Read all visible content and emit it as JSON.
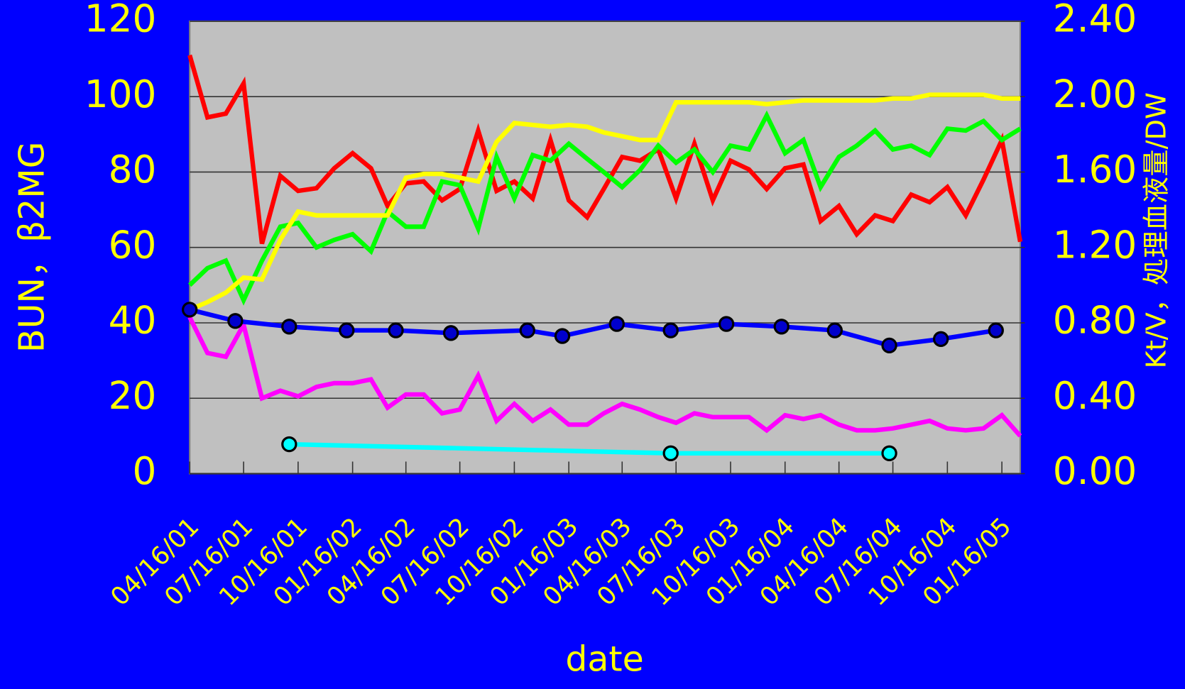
{
  "chart_data": {
    "type": "line",
    "xlabel": "date",
    "ylabel": "BUN，β2MG",
    "y2label": "Kt/V，処理血液量/DW",
    "xlim": [
      "2001-04-16",
      "2005-02-16"
    ],
    "xticks": [
      {
        "value": "2001-04-16",
        "label": "04/16/01"
      },
      {
        "value": "2001-07-16",
        "label": "07/16/01"
      },
      {
        "value": "2001-10-16",
        "label": "10/16/01"
      },
      {
        "value": "2002-01-16",
        "label": "01/16/02"
      },
      {
        "value": "2002-04-16",
        "label": "04/16/02"
      },
      {
        "value": "2002-07-16",
        "label": "07/16/02"
      },
      {
        "value": "2002-10-16",
        "label": "10/16/02"
      },
      {
        "value": "2003-01-16",
        "label": "01/16/03"
      },
      {
        "value": "2003-04-16",
        "label": "04/16/03"
      },
      {
        "value": "2003-07-16",
        "label": "07/16/03"
      },
      {
        "value": "2003-10-16",
        "label": "10/16/03"
      },
      {
        "value": "2004-01-16",
        "label": "01/16/04"
      },
      {
        "value": "2004-04-16",
        "label": "04/16/04"
      },
      {
        "value": "2004-07-16",
        "label": "07/16/04"
      },
      {
        "value": "2004-10-16",
        "label": "10/16/04"
      },
      {
        "value": "2005-01-16",
        "label": "01/16/05"
      }
    ],
    "ylim": [
      0,
      120
    ],
    "yticks": [
      0,
      20,
      40,
      60,
      80,
      100,
      120
    ],
    "y2lim": [
      0,
      2.4
    ],
    "y2ticks": [
      {
        "value": 0,
        "label": "0.00"
      },
      {
        "value": 0.4,
        "label": "0.40"
      },
      {
        "value": 0.8,
        "label": "0.80"
      },
      {
        "value": 1.2,
        "label": "1.20"
      },
      {
        "value": 1.6,
        "label": "1.60"
      },
      {
        "value": 2.0,
        "label": "2.00"
      },
      {
        "value": 2.4,
        "label": "2.40"
      }
    ],
    "grid": true,
    "background": "#c0c0c0",
    "x": [
      "2001-04-16",
      "2001-05-16",
      "2001-06-16",
      "2001-07-16",
      "2001-08-16",
      "2001-09-16",
      "2001-10-16",
      "2001-11-16",
      "2001-12-16",
      "2002-01-16",
      "2002-02-16",
      "2002-03-16",
      "2002-04-16",
      "2002-05-16",
      "2002-06-16",
      "2002-07-16",
      "2002-08-16",
      "2002-09-16",
      "2002-10-16",
      "2002-11-16",
      "2002-12-16",
      "2003-01-16",
      "2003-02-16",
      "2003-03-16",
      "2003-04-16",
      "2003-05-16",
      "2003-06-16",
      "2003-07-16",
      "2003-08-16",
      "2003-09-16",
      "2003-10-16",
      "2003-11-16",
      "2003-12-16",
      "2004-01-16",
      "2004-02-16",
      "2004-03-16",
      "2004-04-16",
      "2004-05-16",
      "2004-06-16",
      "2004-07-16",
      "2004-08-16",
      "2004-09-16",
      "2004-10-16",
      "2004-11-16",
      "2004-12-16",
      "2005-01-16",
      "2005-02-16"
    ],
    "series": [
      {
        "color": "#ff0000",
        "values": [
          111,
          94.5,
          95.5,
          103.5,
          61,
          79,
          75,
          75.7,
          81,
          85,
          81,
          71,
          77,
          77.5,
          72.5,
          75.5,
          91,
          75,
          77.5,
          73,
          88.5,
          72.5,
          68,
          75.5,
          84,
          83,
          86,
          73,
          87.5,
          72.5,
          83,
          80.7,
          75.5,
          81,
          82,
          67,
          71,
          63.5,
          68.5,
          67,
          74,
          72,
          76,
          68.5,
          78,
          88.5,
          61.5
        ]
      },
      {
        "color": "#ff00ff",
        "values": [
          41.5,
          32,
          31,
          39.5,
          20,
          22,
          20.5,
          23,
          24,
          24,
          25,
          17.5,
          21,
          21,
          16,
          17,
          26,
          14,
          18.5,
          14,
          17,
          13,
          13,
          16,
          18.5,
          17,
          15,
          13.5,
          16,
          15,
          15,
          15,
          11.5,
          15.5,
          14.5,
          15.5,
          13,
          11.5,
          11.5,
          12,
          13,
          14,
          12,
          11.5,
          12,
          15.5,
          10
        ]
      },
      {
        "color": "#00ff00",
        "axis": "y2",
        "values": [
          1.0,
          1.09,
          1.13,
          0.92,
          1.13,
          1.31,
          1.33,
          1.2,
          1.24,
          1.27,
          1.18,
          1.39,
          1.31,
          1.31,
          1.55,
          1.53,
          1.3,
          1.68,
          1.46,
          1.69,
          1.66,
          1.75,
          1.67,
          1.6,
          1.52,
          1.61,
          1.74,
          1.65,
          1.72,
          1.6,
          1.74,
          1.72,
          1.9,
          1.7,
          1.77,
          1.52,
          1.68,
          1.74,
          1.82,
          1.72,
          1.74,
          1.69,
          1.83,
          1.82,
          1.87,
          1.77,
          1.83
        ]
      },
      {
        "color": "#ffff00",
        "axis": "y2",
        "values": [
          0.87,
          0.91,
          0.96,
          1.04,
          1.03,
          1.24,
          1.39,
          1.37,
          1.37,
          1.37,
          1.37,
          1.37,
          1.57,
          1.59,
          1.59,
          1.57,
          1.55,
          1.76,
          1.86,
          1.85,
          1.84,
          1.85,
          1.84,
          1.81,
          1.79,
          1.77,
          1.77,
          1.97,
          1.97,
          1.97,
          1.97,
          1.97,
          1.96,
          1.97,
          1.98,
          1.98,
          1.98,
          1.98,
          1.98,
          1.99,
          1.99,
          2.01,
          2.01,
          2.01,
          2.01,
          1.99,
          1.99
        ]
      },
      {
        "color": "#0000ff",
        "marker_color": "#0000cc",
        "markers": true,
        "x": [
          "2001-04-16",
          "2001-07-02",
          "2001-10-01",
          "2002-01-06",
          "2002-03-30",
          "2002-07-01",
          "2002-11-07",
          "2003-01-05",
          "2003-04-07",
          "2003-07-07",
          "2003-10-09",
          "2004-01-10",
          "2004-04-09",
          "2004-07-10",
          "2004-10-05",
          "2005-01-06"
        ],
        "values": [
          43.5,
          40.5,
          39,
          38,
          38,
          37.3,
          38,
          36.5,
          39.7,
          38,
          39.7,
          39,
          38,
          34,
          35.7,
          38
        ]
      },
      {
        "color": "#00ffff",
        "marker_color": "#00ffff",
        "markers": true,
        "x": [
          "2001-10-01",
          "2003-07-07",
          "2004-07-10"
        ],
        "values": [
          7.8,
          5.4,
          5.4
        ]
      }
    ]
  }
}
